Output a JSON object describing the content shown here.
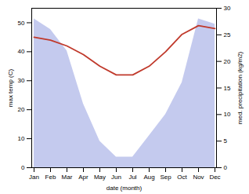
{
  "chart_data": {
    "type": "line",
    "categories": [
      "Jan",
      "Feb",
      "Mar",
      "Apr",
      "May",
      "Jun",
      "Jul",
      "Aug",
      "Sep",
      "Oct",
      "Nov",
      "Dec"
    ],
    "xlabel": "date (month)",
    "ylabel": "max temp (C)",
    "y2label": "med. precipitation (kg/m2)",
    "series": [
      {
        "type": "area",
        "axis": "y2",
        "color": "#b0b8e8",
        "values": [
          28,
          26,
          22,
          12,
          5,
          2,
          2,
          6,
          10,
          16,
          28,
          27
        ]
      },
      {
        "type": "line",
        "color": "#c0392b",
        "values": [
          45,
          44,
          42,
          39,
          35,
          32,
          32,
          35,
          40,
          46,
          49,
          48
        ]
      }
    ],
    "ylim": [
      0,
      55
    ],
    "yticks": [
      0,
      10,
      20,
      30,
      40,
      50
    ],
    "y2lim": [
      0,
      30
    ],
    "y2ticks": [
      0,
      5,
      10,
      15,
      20,
      25,
      30
    ],
    "grid": false
  }
}
